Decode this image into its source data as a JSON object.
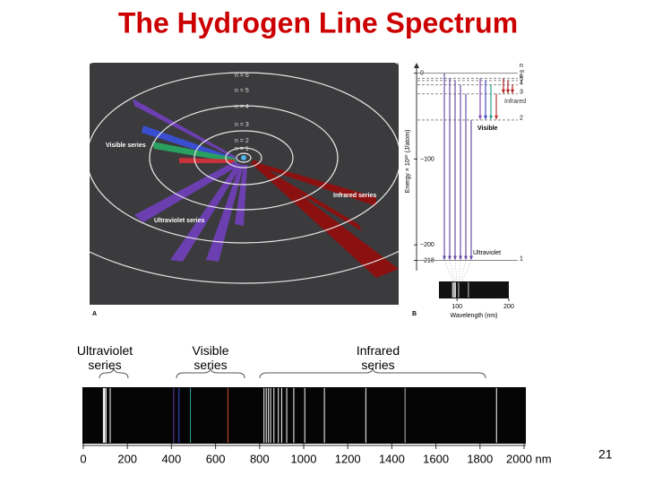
{
  "title": "The Hydrogen Line Spectrum",
  "orbits": {
    "labels": [
      "n = 6",
      "n = 5",
      "n = 4",
      "n = 3",
      "n = 2",
      "n = 1"
    ],
    "series": [
      "Visible series",
      "Infrared series",
      "Ultraviolet series"
    ],
    "panel": "A"
  },
  "energy": {
    "panel": "B",
    "axis_label": "Energy × 10²⁰ (J/atom)",
    "ylim": [
      -230,
      10
    ],
    "yticks": [
      0,
      {
        "value": -100,
        "label": "−100"
      },
      {
        "value": -200,
        "label": "−200"
      },
      {
        "value": -218,
        "label": "−218"
      }
    ],
    "n_header": "n",
    "levels": [
      {
        "n": "∞",
        "energy": 0
      },
      {
        "n": "6",
        "energy": -6
      },
      {
        "n": "5",
        "energy": -8.7
      },
      {
        "n": "4",
        "energy": -13.6
      },
      {
        "n": "3",
        "energy": -24.2
      },
      {
        "n": "2",
        "energy": -54.5
      },
      {
        "n": "1",
        "energy": -218
      }
    ],
    "series": [
      "Infrared",
      "Visible",
      "Ultraviolet"
    ],
    "wavelength": {
      "axis_label": "Wavelength (nm)",
      "xlim": [
        65,
        200
      ],
      "xticks": [
        100,
        200
      ],
      "lines": [
        91.2,
        93,
        95,
        97,
        103,
        122
      ]
    }
  },
  "spectrum": {
    "series": [
      "Ultraviolet series",
      "Visible series",
      "Infrared series"
    ],
    "xlim": [
      0,
      2000
    ],
    "xticks": [
      0,
      200,
      400,
      600,
      800,
      1000,
      1200,
      1400,
      1600,
      1800,
      {
        "value": 2000,
        "label": "2000 nm"
      }
    ],
    "lines": [
      {
        "wavelength": 91,
        "color": "#ffffff"
      },
      {
        "wavelength": 95,
        "color": "#ffffff"
      },
      {
        "wavelength": 97,
        "color": "#ffffff"
      },
      {
        "wavelength": 103,
        "color": "#ffffff"
      },
      {
        "wavelength": 122,
        "color": "#ffffff"
      },
      {
        "wavelength": 410,
        "color": "#6a3fb0"
      },
      {
        "wavelength": 434,
        "color": "#3c4fd0"
      },
      {
        "wavelength": 486,
        "color": "#2fa6a0"
      },
      {
        "wavelength": 656,
        "color": "#d8502a"
      },
      {
        "wavelength": 820,
        "color": "#ffffff"
      },
      {
        "wavelength": 830,
        "color": "#ffffff"
      },
      {
        "wavelength": 840,
        "color": "#ffffff"
      },
      {
        "wavelength": 850,
        "color": "#ffffff"
      },
      {
        "wavelength": 865,
        "color": "#ffffff"
      },
      {
        "wavelength": 885,
        "color": "#ffffff"
      },
      {
        "wavelength": 900,
        "color": "#ffffff"
      },
      {
        "wavelength": 923,
        "color": "#ffffff"
      },
      {
        "wavelength": 955,
        "color": "#ffffff"
      },
      {
        "wavelength": 1005,
        "color": "#ffffff"
      },
      {
        "wavelength": 1094,
        "color": "#ffffff"
      },
      {
        "wavelength": 1282,
        "color": "#ffffff"
      },
      {
        "wavelength": 1460,
        "color": "#bbbbbb"
      },
      {
        "wavelength": 1875,
        "color": "#ffffff"
      }
    ]
  },
  "page_number": "21"
}
